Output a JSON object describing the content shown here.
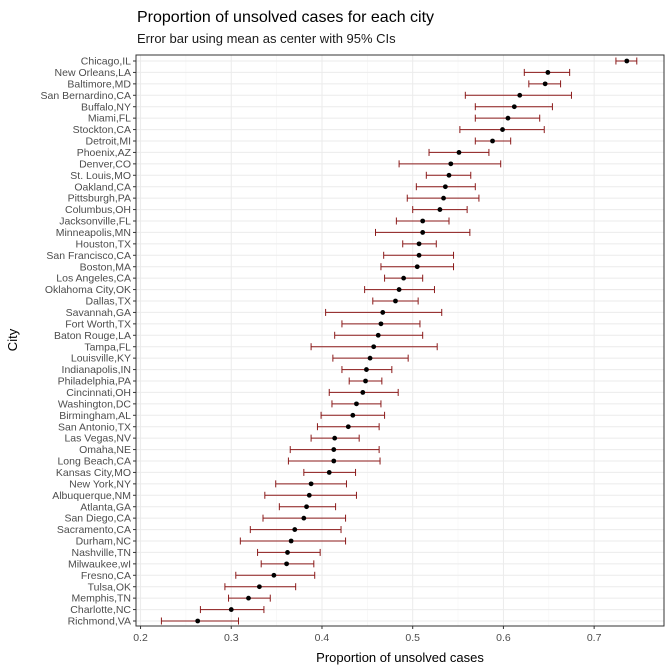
{
  "chart_data": {
    "type": "errorbar",
    "title": "Proportion of unsolved cases for each city",
    "subtitle": "Error bar using mean as center with 95% CIs",
    "xlabel": "Proportion of unsolved cases",
    "ylabel": "City",
    "xlim": [
      0.2,
      0.75
    ],
    "xticks": [
      0.2,
      0.3,
      0.4,
      0.5,
      0.6,
      0.7
    ],
    "xtick_labels": [
      "0.2",
      "0.3",
      "0.4",
      "0.5",
      "0.6",
      "0.7"
    ],
    "grid": true,
    "colors": {
      "errorbar": "#8b1a1a",
      "point": "#000000",
      "panel_border": "#333333",
      "grid_major": "#ebebeb",
      "grid_minor": "#f5f5f5"
    },
    "cities": [
      {
        "name": "Chicago,IL",
        "estimate": 0.736,
        "low": 0.724,
        "high": 0.747
      },
      {
        "name": "New Orleans,LA",
        "estimate": 0.649,
        "low": 0.623,
        "high": 0.673
      },
      {
        "name": "Baltimore,MD",
        "estimate": 0.646,
        "low": 0.628,
        "high": 0.663
      },
      {
        "name": "San Bernardino,CA",
        "estimate": 0.618,
        "low": 0.558,
        "high": 0.675
      },
      {
        "name": "Buffalo,NY",
        "estimate": 0.612,
        "low": 0.569,
        "high": 0.654
      },
      {
        "name": "Miami,FL",
        "estimate": 0.605,
        "low": 0.569,
        "high": 0.64
      },
      {
        "name": "Stockton,CA",
        "estimate": 0.599,
        "low": 0.552,
        "high": 0.645
      },
      {
        "name": "Detroit,MI",
        "estimate": 0.588,
        "low": 0.569,
        "high": 0.608
      },
      {
        "name": "Phoenix,AZ",
        "estimate": 0.551,
        "low": 0.518,
        "high": 0.584
      },
      {
        "name": "Denver,CO",
        "estimate": 0.542,
        "low": 0.485,
        "high": 0.597
      },
      {
        "name": "St. Louis,MO",
        "estimate": 0.54,
        "low": 0.515,
        "high": 0.564
      },
      {
        "name": "Oakland,CA",
        "estimate": 0.536,
        "low": 0.504,
        "high": 0.569
      },
      {
        "name": "Pittsburgh,PA",
        "estimate": 0.534,
        "low": 0.494,
        "high": 0.573
      },
      {
        "name": "Columbus,OH",
        "estimate": 0.53,
        "low": 0.5,
        "high": 0.56
      },
      {
        "name": "Jacksonville,FL",
        "estimate": 0.511,
        "low": 0.482,
        "high": 0.54
      },
      {
        "name": "Minneapolis,MN",
        "estimate": 0.511,
        "low": 0.459,
        "high": 0.563
      },
      {
        "name": "Houston,TX",
        "estimate": 0.507,
        "low": 0.489,
        "high": 0.526
      },
      {
        "name": "San Francisco,CA",
        "estimate": 0.507,
        "low": 0.468,
        "high": 0.545
      },
      {
        "name": "Boston,MA",
        "estimate": 0.505,
        "low": 0.465,
        "high": 0.545
      },
      {
        "name": "Los Angeles,CA",
        "estimate": 0.49,
        "low": 0.469,
        "high": 0.511
      },
      {
        "name": "Oklahoma City,OK",
        "estimate": 0.485,
        "low": 0.447,
        "high": 0.524
      },
      {
        "name": "Dallas,TX",
        "estimate": 0.481,
        "low": 0.456,
        "high": 0.506
      },
      {
        "name": "Savannah,GA",
        "estimate": 0.467,
        "low": 0.404,
        "high": 0.532
      },
      {
        "name": "Fort Worth,TX",
        "estimate": 0.465,
        "low": 0.422,
        "high": 0.508
      },
      {
        "name": "Baton Rouge,LA",
        "estimate": 0.462,
        "low": 0.414,
        "high": 0.511
      },
      {
        "name": "Tampa,FL",
        "estimate": 0.457,
        "low": 0.388,
        "high": 0.527
      },
      {
        "name": "Louisville,KY",
        "estimate": 0.453,
        "low": 0.412,
        "high": 0.495
      },
      {
        "name": "Indianapolis,IN",
        "estimate": 0.449,
        "low": 0.422,
        "high": 0.477
      },
      {
        "name": "Philadelphia,PA",
        "estimate": 0.448,
        "low": 0.43,
        "high": 0.466
      },
      {
        "name": "Cincinnati,OH",
        "estimate": 0.445,
        "low": 0.408,
        "high": 0.484
      },
      {
        "name": "Washington,DC",
        "estimate": 0.438,
        "low": 0.411,
        "high": 0.465
      },
      {
        "name": "Birmingham,AL",
        "estimate": 0.434,
        "low": 0.399,
        "high": 0.469
      },
      {
        "name": "San Antonio,TX",
        "estimate": 0.429,
        "low": 0.395,
        "high": 0.463
      },
      {
        "name": "Las Vegas,NV",
        "estimate": 0.414,
        "low": 0.388,
        "high": 0.441
      },
      {
        "name": "Omaha,NE",
        "estimate": 0.413,
        "low": 0.365,
        "high": 0.463
      },
      {
        "name": "Long Beach,CA",
        "estimate": 0.413,
        "low": 0.363,
        "high": 0.464
      },
      {
        "name": "Kansas City,MO",
        "estimate": 0.408,
        "low": 0.38,
        "high": 0.437
      },
      {
        "name": "New York,NY",
        "estimate": 0.388,
        "low": 0.349,
        "high": 0.427
      },
      {
        "name": "Albuquerque,NM",
        "estimate": 0.386,
        "low": 0.337,
        "high": 0.438
      },
      {
        "name": "Atlanta,GA",
        "estimate": 0.383,
        "low": 0.353,
        "high": 0.415
      },
      {
        "name": "San Diego,CA",
        "estimate": 0.38,
        "low": 0.335,
        "high": 0.426
      },
      {
        "name": "Sacramento,CA",
        "estimate": 0.37,
        "low": 0.321,
        "high": 0.421
      },
      {
        "name": "Durham,NC",
        "estimate": 0.366,
        "low": 0.31,
        "high": 0.426
      },
      {
        "name": "Nashville,TN",
        "estimate": 0.362,
        "low": 0.329,
        "high": 0.398
      },
      {
        "name": "Milwaukee,wI",
        "estimate": 0.361,
        "low": 0.333,
        "high": 0.391
      },
      {
        "name": "Fresno,CA",
        "estimate": 0.347,
        "low": 0.305,
        "high": 0.392
      },
      {
        "name": "Tulsa,OK",
        "estimate": 0.331,
        "low": 0.293,
        "high": 0.371
      },
      {
        "name": "Memphis,TN",
        "estimate": 0.319,
        "low": 0.297,
        "high": 0.343
      },
      {
        "name": "Charlotte,NC",
        "estimate": 0.3,
        "low": 0.266,
        "high": 0.336
      },
      {
        "name": "Richmond,VA",
        "estimate": 0.263,
        "low": 0.223,
        "high": 0.308
      }
    ]
  }
}
